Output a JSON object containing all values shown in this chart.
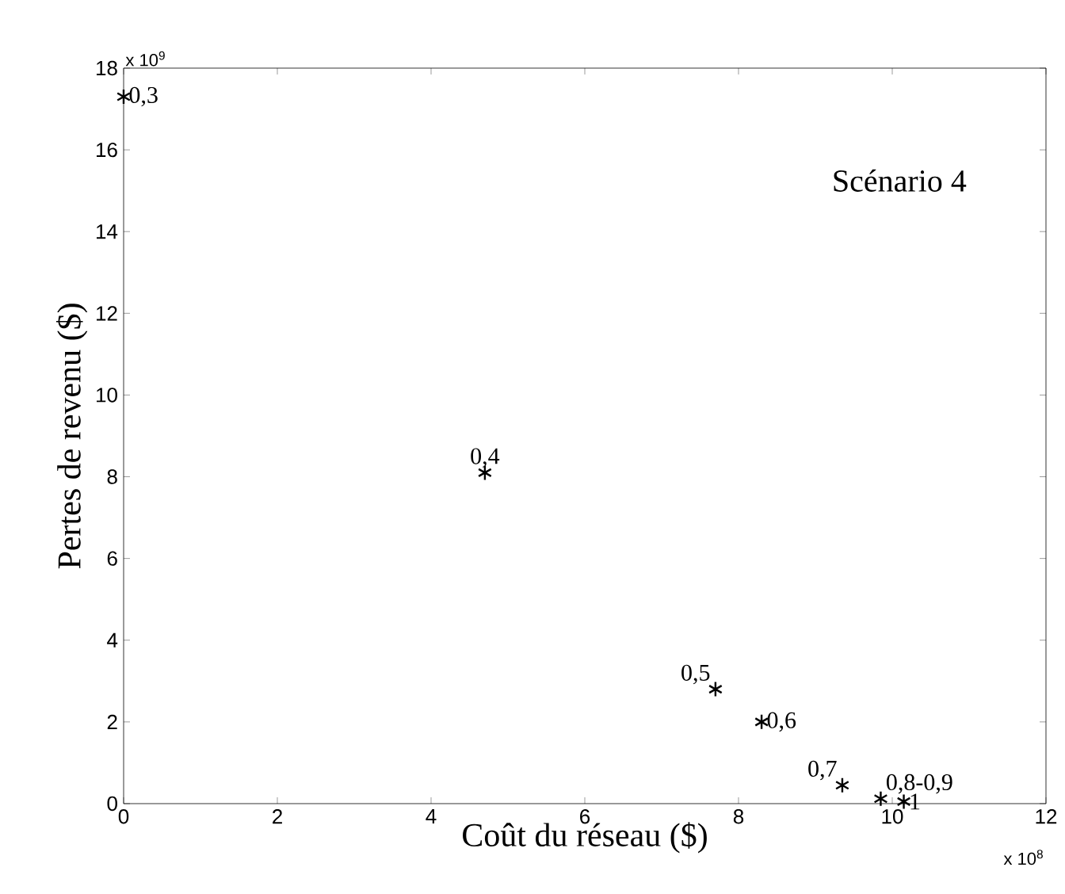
{
  "chart_data": {
    "type": "scatter",
    "xlabel": "Coût du réseau  ($)",
    "ylabel": "Pertes de revenu ($)",
    "x": [
      0,
      4.7,
      7.7,
      8.3,
      9.35,
      9.85,
      10.15
    ],
    "values": [
      17.3,
      8.1,
      2.8,
      2.0,
      0.45,
      0.12,
      0.05
    ],
    "color": "#000000",
    "marker": "cross",
    "grid": false,
    "xlim": [
      0,
      12
    ],
    "ylim": [
      0,
      18
    ],
    "xticks": [
      0,
      2,
      4,
      6,
      8,
      10,
      12
    ],
    "yticks": [
      0,
      2,
      4,
      6,
      8,
      10,
      12,
      14,
      16,
      18
    ],
    "annotations": [
      "Scénario 4",
      "x 10$^{9}$",
      "x 10$^{8}$",
      {
        "text": "0,3",
        "x": 0,
        "y": 17.3
      },
      {
        "text": "0,4",
        "x": 4.7,
        "y": 8.1
      },
      {
        "text": "0,5",
        "x": 7.7,
        "y": 2.8
      },
      {
        "text": "0,6",
        "x": 8.3,
        "y": 2.0
      },
      {
        "text": "0,7",
        "x": 9.35,
        "y": 0.45
      },
      {
        "text": "0,8-0,9",
        "x": 9.85,
        "y": 0.12
      },
      {
        "text": "1",
        "x": 10.15,
        "y": 0.05
      }
    ]
  }
}
